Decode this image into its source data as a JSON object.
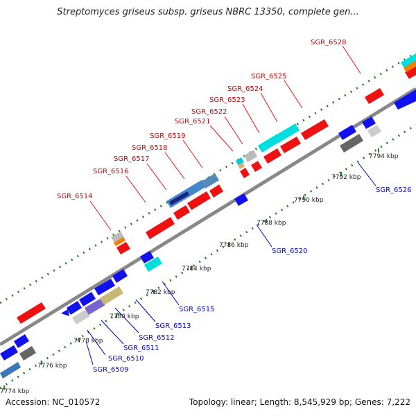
{
  "title": "Streptomyces griseus subsp. griseus NBRC 13350, complete gen...",
  "footer": {
    "accession": "Accession: NC_010572",
    "summary": "Topology: linear; Length: 8,545,929 bp; Genes: 7,222"
  },
  "colors": {
    "forward_label": "#cc0000",
    "reverse_label": "#0000cc",
    "backbone": "#888888",
    "guide_dots": "#2a7a2a"
  },
  "ticks": [
    {
      "label": "7774 kbp"
    },
    {
      "label": "7776 kbp"
    },
    {
      "label": "7778 kbp"
    },
    {
      "label": "7780 kbp"
    },
    {
      "label": "7782 kbp"
    },
    {
      "label": "7784 kbp"
    },
    {
      "label": "7786 kbp"
    },
    {
      "label": "7788 kbp"
    },
    {
      "label": "7790 kbp"
    },
    {
      "label": "7792 kbp"
    },
    {
      "label": "7794 kbp"
    }
  ],
  "forward_labels": [
    {
      "name": "SGR_6514"
    },
    {
      "name": "SGR_6516"
    },
    {
      "name": "SGR_6517"
    },
    {
      "name": "SGR_6518"
    },
    {
      "name": "SGR_6519"
    },
    {
      "name": "SGR_6521"
    },
    {
      "name": "SGR_6522"
    },
    {
      "name": "SGR_6523"
    },
    {
      "name": "SGR_6524"
    },
    {
      "name": "SGR_6525"
    },
    {
      "name": "SGR_6528"
    }
  ],
  "reverse_labels": [
    {
      "name": "SGR_6509"
    },
    {
      "name": "SGR_6510"
    },
    {
      "name": "SGR_6511"
    },
    {
      "name": "SGR_6512"
    },
    {
      "name": "SGR_6513"
    },
    {
      "name": "SGR_6515"
    },
    {
      "name": "SGR_6520"
    },
    {
      "name": "SGR_6526"
    }
  ]
}
